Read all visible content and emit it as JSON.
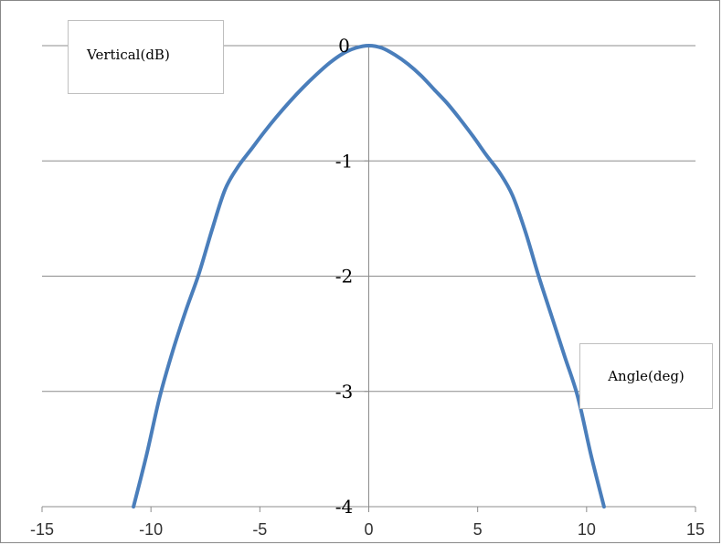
{
  "chart_data": {
    "type": "line",
    "title": "",
    "annotations": [
      "Vertical(dB)",
      "Angle(deg)"
    ],
    "xlabel": "Angle(deg)",
    "ylabel": "Vertical(dB)",
    "xlim": [
      -15,
      15
    ],
    "ylim": [
      -4,
      0
    ],
    "x_ticks": [
      "-15",
      "-10",
      "-5",
      "0",
      "5",
      "10",
      "15"
    ],
    "y_ticks": [
      "0",
      "-1",
      "-2",
      "-3",
      "-4"
    ],
    "grid": "horizontal",
    "line_color": "#4a7ebb",
    "series": [
      {
        "x": [
          -10.8,
          -10.2,
          -9.6,
          -9.0,
          -8.4,
          -7.8,
          -7.2,
          -6.6,
          -6.0,
          -5.4,
          -4.8,
          -4.2,
          -3.6,
          -3.0,
          -2.4,
          -1.8,
          -1.2,
          -0.6,
          0,
          0.6,
          1.2,
          1.8,
          2.4,
          3.0,
          3.6,
          4.2,
          4.8,
          5.4,
          6.0,
          6.6,
          7.2,
          7.8,
          8.4,
          9.0,
          9.6,
          10.2,
          10.8
        ],
        "y": [
          -4.0,
          -3.55,
          -3.05,
          -2.65,
          -2.3,
          -1.98,
          -1.6,
          -1.25,
          -1.05,
          -0.9,
          -0.75,
          -0.61,
          -0.48,
          -0.36,
          -0.25,
          -0.15,
          -0.07,
          -0.02,
          0,
          -0.02,
          -0.08,
          -0.16,
          -0.26,
          -0.38,
          -0.5,
          -0.64,
          -0.79,
          -0.95,
          -1.1,
          -1.3,
          -1.62,
          -2.0,
          -2.35,
          -2.7,
          -3.05,
          -3.55,
          -4.0
        ]
      }
    ]
  }
}
